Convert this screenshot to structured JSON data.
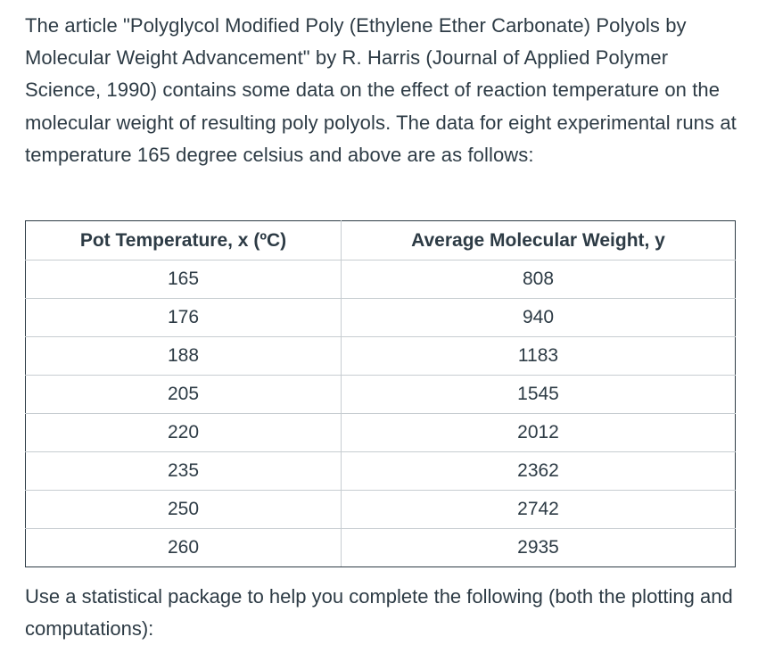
{
  "intro_text": "The article \"Polyglycol Modified Poly (Ethylene Ether Carbonate) Polyols by Molecular Weight Advancement\" by R. Harris (Journal of Applied Polymer Science, 1990) contains some data on the effect of reaction temperature on the molecular weight of resulting poly polyols. The data for eight experimental runs at temperature 165 degree celsius and above are as follows:",
  "table": {
    "headers": {
      "x": "Pot Temperature, x (ºC)",
      "y": "Average Molecular Weight, y"
    },
    "rows": [
      {
        "x": "165",
        "y": "808"
      },
      {
        "x": "176",
        "y": "940"
      },
      {
        "x": "188",
        "y": "1183"
      },
      {
        "x": "205",
        "y": "1545"
      },
      {
        "x": "220",
        "y": "2012"
      },
      {
        "x": "235",
        "y": "2362"
      },
      {
        "x": "250",
        "y": "2742"
      },
      {
        "x": "260",
        "y": "2935"
      }
    ]
  },
  "outro_text": "Use a statistical package to help you complete the following (both the plotting and computations):"
}
